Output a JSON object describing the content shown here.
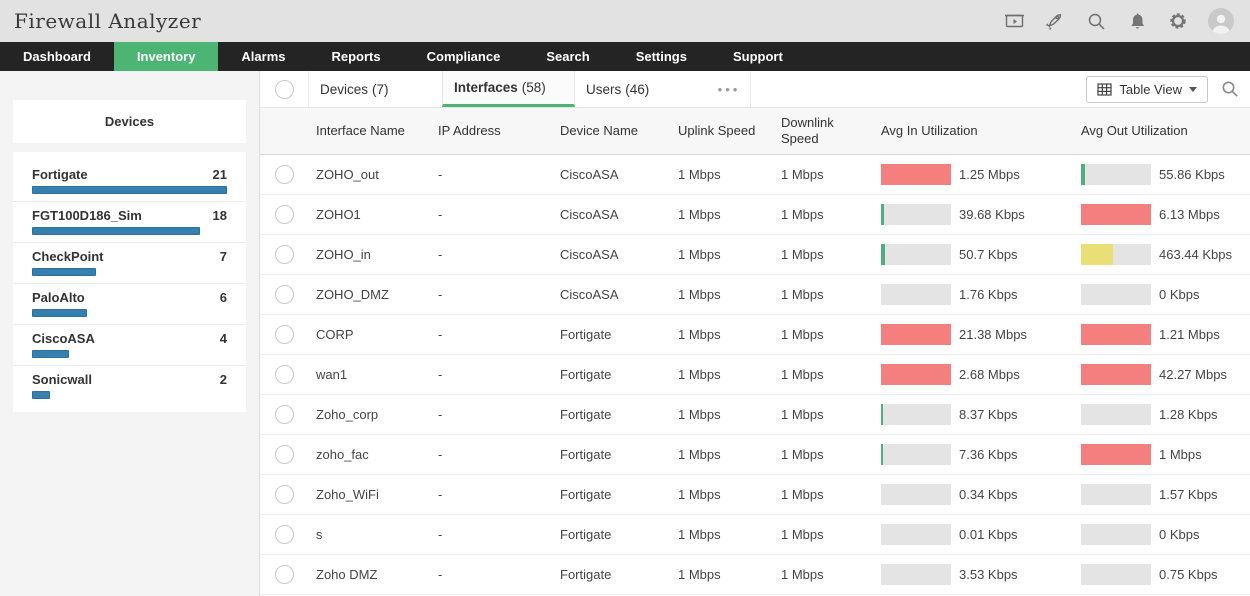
{
  "app": {
    "title": "Firewall Analyzer"
  },
  "header": {
    "icons": [
      "presentation-icon",
      "rocket-icon",
      "search-icon",
      "bell-icon",
      "gear-icon",
      "avatar"
    ]
  },
  "nav": {
    "items": [
      {
        "label": "Dashboard",
        "active": false
      },
      {
        "label": "Inventory",
        "active": true
      },
      {
        "label": "Alarms",
        "active": false
      },
      {
        "label": "Reports",
        "active": false
      },
      {
        "label": "Compliance",
        "active": false
      },
      {
        "label": "Search",
        "active": false
      },
      {
        "label": "Settings",
        "active": false
      },
      {
        "label": "Support",
        "active": false
      }
    ]
  },
  "sidebar": {
    "title": "Devices",
    "items": [
      {
        "name": "Fortigate",
        "count": 21,
        "bar_pct": 100
      },
      {
        "name": "FGT100D186_Sim",
        "count": 18,
        "bar_pct": 86
      },
      {
        "name": "CheckPoint",
        "count": 7,
        "bar_pct": 33
      },
      {
        "name": "PaloAlto",
        "count": 6,
        "bar_pct": 28
      },
      {
        "name": "CiscoASA",
        "count": 4,
        "bar_pct": 19
      },
      {
        "name": "Sonicwall",
        "count": 2,
        "bar_pct": 9
      }
    ]
  },
  "tabs": {
    "items": [
      {
        "label": "Devices",
        "count": "(7)",
        "active": false
      },
      {
        "label": "Interfaces",
        "count": "(58)",
        "active": true
      },
      {
        "label": "Users",
        "count": "(46)",
        "active": false
      }
    ],
    "more": "•••"
  },
  "toolbar": {
    "view_label": "Table View"
  },
  "table": {
    "columns": [
      "Interface Name",
      "IP Address",
      "Device Name",
      "Uplink Speed",
      "Downlink Speed",
      "Avg In Utilization",
      "Avg Out Utilization"
    ],
    "rows": [
      {
        "interface": "ZOHO_out",
        "ip": "-",
        "device": "CiscoASA",
        "uplink": "1 Mbps",
        "downlink": "1 Mbps",
        "avg_in": {
          "label": "1.25 Mbps",
          "pct": 100,
          "color": "red"
        },
        "avg_out": {
          "label": "55.86 Kbps",
          "pct": 5,
          "color": "green"
        }
      },
      {
        "interface": "ZOHO1",
        "ip": "-",
        "device": "CiscoASA",
        "uplink": "1 Mbps",
        "downlink": "1 Mbps",
        "avg_in": {
          "label": "39.68 Kbps",
          "pct": 4,
          "color": "green"
        },
        "avg_out": {
          "label": "6.13 Mbps",
          "pct": 100,
          "color": "red"
        }
      },
      {
        "interface": "ZOHO_in",
        "ip": "-",
        "device": "CiscoASA",
        "uplink": "1 Mbps",
        "downlink": "1 Mbps",
        "avg_in": {
          "label": "50.7 Kbps",
          "pct": 5,
          "color": "green"
        },
        "avg_out": {
          "label": "463.44 Kbps",
          "pct": 46,
          "color": "yellow"
        }
      },
      {
        "interface": "ZOHO_DMZ",
        "ip": "-",
        "device": "CiscoASA",
        "uplink": "1 Mbps",
        "downlink": "1 Mbps",
        "avg_in": {
          "label": "1.76 Kbps",
          "pct": 0,
          "color": "none"
        },
        "avg_out": {
          "label": "0 Kbps",
          "pct": 0,
          "color": "none"
        }
      },
      {
        "interface": "CORP",
        "ip": "-",
        "device": "Fortigate",
        "uplink": "1 Mbps",
        "downlink": "1 Mbps",
        "avg_in": {
          "label": "21.38 Mbps",
          "pct": 100,
          "color": "red"
        },
        "avg_out": {
          "label": "1.21 Mbps",
          "pct": 100,
          "color": "red"
        }
      },
      {
        "interface": "wan1",
        "ip": "-",
        "device": "Fortigate",
        "uplink": "1 Mbps",
        "downlink": "1 Mbps",
        "avg_in": {
          "label": "2.68 Mbps",
          "pct": 100,
          "color": "red"
        },
        "avg_out": {
          "label": "42.27 Mbps",
          "pct": 100,
          "color": "red"
        }
      },
      {
        "interface": "Zoho_corp",
        "ip": "-",
        "device": "Fortigate",
        "uplink": "1 Mbps",
        "downlink": "1 Mbps",
        "avg_in": {
          "label": "8.37 Kbps",
          "pct": 3,
          "color": "green"
        },
        "avg_out": {
          "label": "1.28 Kbps",
          "pct": 0,
          "color": "none"
        }
      },
      {
        "interface": "zoho_fac",
        "ip": "-",
        "device": "Fortigate",
        "uplink": "1 Mbps",
        "downlink": "1 Mbps",
        "avg_in": {
          "label": "7.36 Kbps",
          "pct": 3,
          "color": "green"
        },
        "avg_out": {
          "label": "1 Mbps",
          "pct": 100,
          "color": "red"
        }
      },
      {
        "interface": "Zoho_WiFi",
        "ip": "-",
        "device": "Fortigate",
        "uplink": "1 Mbps",
        "downlink": "1 Mbps",
        "avg_in": {
          "label": "0.34 Kbps",
          "pct": 0,
          "color": "none"
        },
        "avg_out": {
          "label": "1.57 Kbps",
          "pct": 0,
          "color": "none"
        }
      },
      {
        "interface": "s",
        "ip": "-",
        "device": "Fortigate",
        "uplink": "1 Mbps",
        "downlink": "1 Mbps",
        "avg_in": {
          "label": "0.01 Kbps",
          "pct": 0,
          "color": "none"
        },
        "avg_out": {
          "label": "0 Kbps",
          "pct": 0,
          "color": "none"
        }
      },
      {
        "interface": "Zoho DMZ",
        "ip": "-",
        "device": "Fortigate",
        "uplink": "1 Mbps",
        "downlink": "1 Mbps",
        "avg_in": {
          "label": "3.53 Kbps",
          "pct": 0,
          "color": "none"
        },
        "avg_out": {
          "label": "0.75 Kbps",
          "pct": 0,
          "color": "none"
        }
      }
    ]
  },
  "colors": {
    "accent_green": "#4cb574",
    "bar_blue": "#3580af",
    "util_red": "#f47f7f",
    "util_green": "#4fae7d",
    "util_yellow": "#e9df76",
    "track_gray": "#e4e4e4"
  }
}
